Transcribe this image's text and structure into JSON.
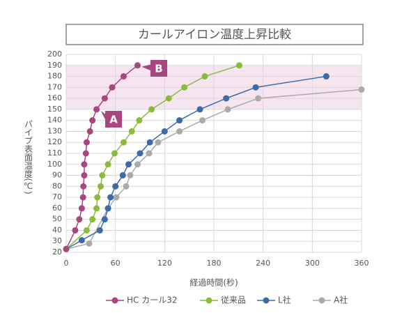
{
  "chart_data": {
    "type": "line",
    "title": "カールアイロン温度上昇比較",
    "x_label": "経過時間(秒)",
    "y_label": "パイプ表面温度(℃)",
    "xlim": [
      0,
      360
    ],
    "xticks": [
      0,
      60,
      120,
      180,
      240,
      300,
      360
    ],
    "ylim": [
      20,
      200
    ],
    "yticks": [
      20,
      30,
      40,
      50,
      60,
      70,
      80,
      90,
      100,
      110,
      120,
      130,
      140,
      150,
      160,
      170,
      180,
      190,
      200
    ],
    "grid": true,
    "band": [
      150,
      190
    ],
    "annotations": [
      {
        "text": "A"
      },
      {
        "text": "B"
      }
    ],
    "series": [
      {
        "name": "HC カール32",
        "color": "#a8467e",
        "x": [
          0,
          11,
          16,
          19,
          20.5,
          21,
          22,
          22,
          24,
          25,
          29,
          32,
          37,
          47,
          56,
          70,
          87
        ],
        "values": [
          23,
          40,
          50,
          60,
          70,
          80,
          90,
          100,
          110,
          120,
          130,
          140,
          150,
          160,
          170,
          180,
          190
        ]
      },
      {
        "name": "従来品",
        "color": "#8cbb3c",
        "x": [
          0,
          25,
          32,
          37,
          38,
          42,
          44,
          51,
          59,
          70,
          80,
          89,
          104,
          125,
          144,
          169,
          211
        ],
        "values": [
          23,
          40,
          50,
          60,
          70,
          80,
          90,
          100,
          110,
          120,
          130,
          140,
          150,
          160,
          170,
          180,
          190
        ]
      },
      {
        "name": "L社",
        "color": "#3a6aa8",
        "x": [
          0,
          19,
          41,
          47,
          51,
          54,
          60,
          69,
          76,
          90,
          102,
          120,
          138,
          163,
          195,
          231,
          317
        ],
        "values": [
          23,
          31,
          40,
          50,
          60,
          70,
          80,
          90,
          100,
          110,
          120,
          130,
          140,
          150,
          160,
          170,
          180
        ]
      },
      {
        "name": "A社",
        "color": "#aaaaaa",
        "x": [
          0,
          28,
          51,
          61,
          73,
          78,
          87,
          101,
          112,
          138,
          166,
          197,
          234,
          360
        ],
        "values": [
          23,
          28,
          60,
          70,
          80,
          90,
          100,
          110,
          120,
          130,
          140,
          150,
          160,
          168
        ]
      }
    ]
  }
}
